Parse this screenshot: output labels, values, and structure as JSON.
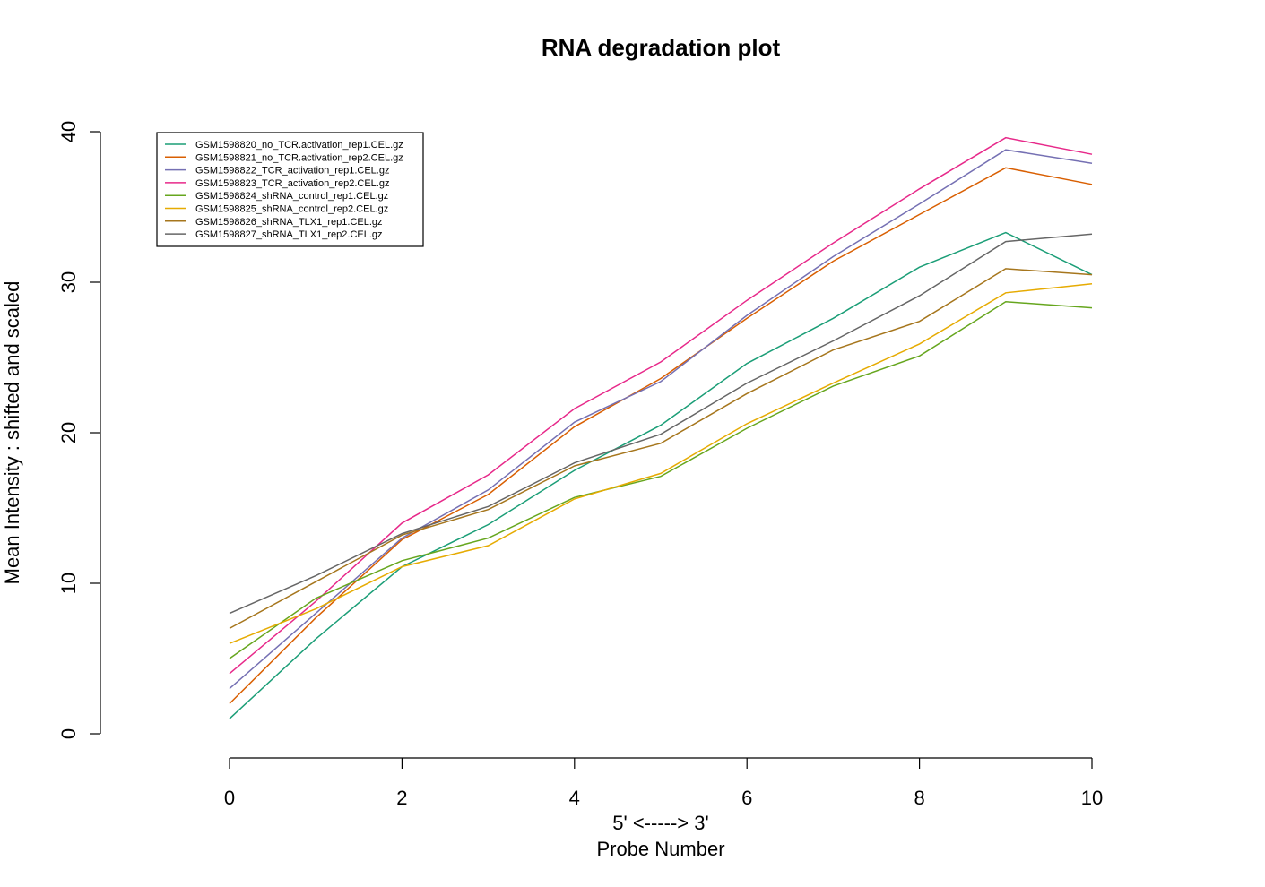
{
  "chart_data": {
    "type": "line",
    "title": "RNA degradation plot",
    "xlabel": "5' <-----> 3'",
    "xlabel2": "Probe Number",
    "ylabel": "Mean Intensity : shifted and scaled",
    "xlim": [
      0,
      10
    ],
    "ylim": [
      0,
      40
    ],
    "x_ticks": [
      0,
      2,
      4,
      6,
      8,
      10
    ],
    "y_ticks": [
      0,
      10,
      20,
      30,
      40
    ],
    "x": [
      0,
      1,
      2,
      3,
      4,
      5,
      6,
      7,
      8,
      9,
      10
    ],
    "grid": false,
    "legend_position": "top-left",
    "series": [
      {
        "name": "GSM1598820_no_TCR.activation_rep1.CEL.gz",
        "color": "#1B9E77",
        "values": [
          1.0,
          6.3,
          11.1,
          13.9,
          17.5,
          20.5,
          24.6,
          27.6,
          31.0,
          33.3,
          30.5
        ]
      },
      {
        "name": "GSM1598821_no_TCR.activation_rep2.CEL.gz",
        "color": "#D95F02",
        "values": [
          2.0,
          7.7,
          12.9,
          15.9,
          20.4,
          23.6,
          27.6,
          31.4,
          34.5,
          37.6,
          36.5
        ]
      },
      {
        "name": "GSM1598822_TCR_activation_rep1.CEL.gz",
        "color": "#7570B3",
        "values": [
          3.0,
          8.0,
          13.0,
          16.2,
          20.7,
          23.4,
          27.8,
          31.7,
          35.2,
          38.8,
          37.9
        ]
      },
      {
        "name": "GSM1598823_TCR_activation_rep2.CEL.gz",
        "color": "#E7298A",
        "values": [
          4.0,
          8.8,
          14.0,
          17.2,
          21.6,
          24.7,
          28.8,
          32.6,
          36.2,
          39.6,
          38.5
        ]
      },
      {
        "name": "GSM1598824_shRNA_control_rep1.CEL.gz",
        "color": "#66A61E",
        "values": [
          5.0,
          9.0,
          11.5,
          13.0,
          15.7,
          17.1,
          20.3,
          23.1,
          25.1,
          28.7,
          28.3
        ]
      },
      {
        "name": "GSM1598825_shRNA_control_rep2.CEL.gz",
        "color": "#E6AB02",
        "values": [
          6.0,
          8.3,
          11.1,
          12.5,
          15.6,
          17.3,
          20.6,
          23.3,
          25.9,
          29.3,
          29.9
        ]
      },
      {
        "name": "GSM1598826_shRNA_TLX1_rep1.CEL.gz",
        "color": "#A6761D",
        "values": [
          7.0,
          10.1,
          13.2,
          14.9,
          17.8,
          19.3,
          22.6,
          25.5,
          27.4,
          30.9,
          30.5
        ]
      },
      {
        "name": "GSM1598827_shRNA_TLX1_rep2.CEL.gz",
        "color": "#666666",
        "values": [
          8.0,
          10.5,
          13.3,
          15.1,
          18.0,
          19.9,
          23.3,
          26.1,
          29.1,
          32.7,
          33.2
        ]
      }
    ]
  }
}
